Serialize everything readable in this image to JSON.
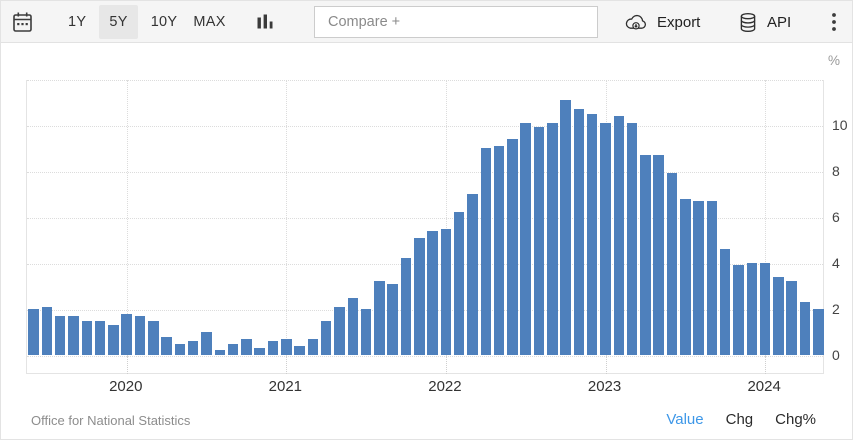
{
  "toolbar": {
    "ranges": [
      {
        "label": "1Y",
        "active": false
      },
      {
        "label": "5Y",
        "active": true
      },
      {
        "label": "10Y",
        "active": false
      },
      {
        "label": "MAX",
        "active": false
      }
    ],
    "compare_placeholder": "Compare +",
    "export_label": "Export",
    "api_label": "API"
  },
  "icons": {
    "calendar": "calendar-icon",
    "chart_type": "columns-icon",
    "export": "cloud-download-icon",
    "api": "database-icon",
    "more": "kebab-menu-icon"
  },
  "colors": {
    "bar": "#4e80bc",
    "toolbar_bg": "#f5f5f5",
    "active_range_bg": "#e7e7e7",
    "grid": "#dcdcdc",
    "axis_text": "#444444",
    "active_link": "#3d97e8",
    "source_text": "#8d8d8d"
  },
  "chart_data": {
    "type": "bar",
    "title": "",
    "unit": "%",
    "ylim": [
      0,
      12
    ],
    "yticks": [
      0,
      2,
      4,
      6,
      8,
      10
    ],
    "grid": "dotted",
    "axis_side": "right",
    "source": "Office for National Statistics",
    "year_marks": [
      {
        "label": "2020",
        "index": 7
      },
      {
        "label": "2021",
        "index": 19
      },
      {
        "label": "2022",
        "index": 31
      },
      {
        "label": "2023",
        "index": 43
      },
      {
        "label": "2024",
        "index": 55
      }
    ],
    "x": [
      "Jun 2019",
      "Jul 2019",
      "Aug 2019",
      "Sep 2019",
      "Oct 2019",
      "Nov 2019",
      "Dec 2019",
      "Jan 2020",
      "Feb 2020",
      "Mar 2020",
      "Apr 2020",
      "May 2020",
      "Jun 2020",
      "Jul 2020",
      "Aug 2020",
      "Sep 2020",
      "Oct 2020",
      "Nov 2020",
      "Dec 2020",
      "Jan 2021",
      "Feb 2021",
      "Mar 2021",
      "Apr 2021",
      "May 2021",
      "Jun 2021",
      "Jul 2021",
      "Aug 2021",
      "Sep 2021",
      "Oct 2021",
      "Nov 2021",
      "Dec 2021",
      "Jan 2022",
      "Feb 2022",
      "Mar 2022",
      "Apr 2022",
      "May 2022",
      "Jun 2022",
      "Jul 2022",
      "Aug 2022",
      "Sep 2022",
      "Oct 2022",
      "Nov 2022",
      "Dec 2022",
      "Jan 2023",
      "Feb 2023",
      "Mar 2023",
      "Apr 2023",
      "May 2023",
      "Jun 2023",
      "Jul 2023",
      "Aug 2023",
      "Sep 2023",
      "Oct 2023",
      "Nov 2023",
      "Dec 2023",
      "Jan 2024",
      "Feb 2024",
      "Mar 2024",
      "Apr 2024",
      "May 2024"
    ],
    "values": [
      2.0,
      2.1,
      1.7,
      1.7,
      1.5,
      1.5,
      1.3,
      1.8,
      1.7,
      1.5,
      0.8,
      0.5,
      0.6,
      1.0,
      0.2,
      0.5,
      0.7,
      0.3,
      0.6,
      0.7,
      0.4,
      0.7,
      1.5,
      2.1,
      2.5,
      2.0,
      3.2,
      3.1,
      4.2,
      5.1,
      5.4,
      5.5,
      6.2,
      7.0,
      9.0,
      9.1,
      9.4,
      10.1,
      9.9,
      10.1,
      11.1,
      10.7,
      10.5,
      10.1,
      10.4,
      10.1,
      8.7,
      8.7,
      7.9,
      6.8,
      6.7,
      6.7,
      4.6,
      3.9,
      4.0,
      4.0,
      3.4,
      3.2,
      2.3,
      2.0
    ]
  },
  "footer": {
    "source": "Office for National Statistics",
    "links": [
      {
        "label": "Value",
        "active": true
      },
      {
        "label": "Chg",
        "active": false
      },
      {
        "label": "Chg%",
        "active": false
      }
    ]
  }
}
